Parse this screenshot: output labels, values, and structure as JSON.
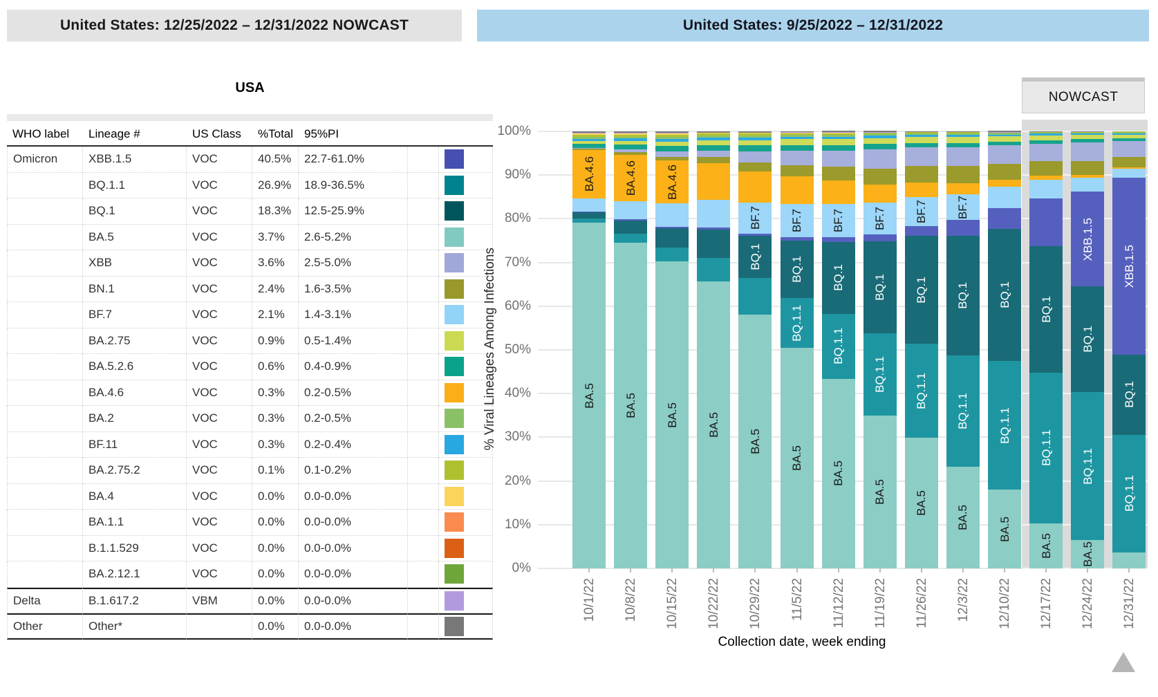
{
  "left_panel": {
    "title": "United States: 12/25/2022 – 12/31/2022 NOWCAST",
    "region_label": "USA",
    "columns": [
      "WHO label",
      "Lineage #",
      "US Class",
      "%Total",
      "95%PI"
    ],
    "rows": [
      {
        "who": "Omicron",
        "lineage": "XBB.1.5",
        "us_class": "VOC",
        "total": "40.5%",
        "pi": "22.7-61.0%",
        "color": "#4650b2"
      },
      {
        "who": "",
        "lineage": "BQ.1.1",
        "us_class": "VOC",
        "total": "26.9%",
        "pi": "18.9-36.5%",
        "color": "#00838d"
      },
      {
        "who": "",
        "lineage": "BQ.1",
        "us_class": "VOC",
        "total": "18.3%",
        "pi": "12.5-25.9%",
        "color": "#01565d"
      },
      {
        "who": "",
        "lineage": "BA.5",
        "us_class": "VOC",
        "total": "3.7%",
        "pi": "2.6-5.2%",
        "color": "#82cac1"
      },
      {
        "who": "",
        "lineage": "XBB",
        "us_class": "VOC",
        "total": "3.6%",
        "pi": "2.5-5.0%",
        "color": "#9fa8d9"
      },
      {
        "who": "",
        "lineage": "BN.1",
        "us_class": "VOC",
        "total": "2.4%",
        "pi": "1.6-3.5%",
        "color": "#99982b"
      },
      {
        "who": "",
        "lineage": "BF.7",
        "us_class": "VOC",
        "total": "2.1%",
        "pi": "1.4-3.1%",
        "color": "#93d3f7"
      },
      {
        "who": "",
        "lineage": "BA.2.75",
        "us_class": "VOC",
        "total": "0.9%",
        "pi": "0.5-1.4%",
        "color": "#cbda52"
      },
      {
        "who": "",
        "lineage": "BA.5.2.6",
        "us_class": "VOC",
        "total": "0.6%",
        "pi": "0.4-0.9%",
        "color": "#0aa28a"
      },
      {
        "who": "",
        "lineage": "BA.4.6",
        "us_class": "VOC",
        "total": "0.3%",
        "pi": "0.2-0.5%",
        "color": "#fbae17"
      },
      {
        "who": "",
        "lineage": "BA.2",
        "us_class": "VOC",
        "total": "0.3%",
        "pi": "0.2-0.5%",
        "color": "#8bc166"
      },
      {
        "who": "",
        "lineage": "BF.11",
        "us_class": "VOC",
        "total": "0.3%",
        "pi": "0.2-0.4%",
        "color": "#29a7e0"
      },
      {
        "who": "",
        "lineage": "BA.2.75.2",
        "us_class": "VOC",
        "total": "0.1%",
        "pi": "0.1-0.2%",
        "color": "#afc02f"
      },
      {
        "who": "",
        "lineage": "BA.4",
        "us_class": "VOC",
        "total": "0.0%",
        "pi": "0.0-0.0%",
        "color": "#fbd45c"
      },
      {
        "who": "",
        "lineage": "BA.1.1",
        "us_class": "VOC",
        "total": "0.0%",
        "pi": "0.0-0.0%",
        "color": "#f98b4e"
      },
      {
        "who": "",
        "lineage": "B.1.1.529",
        "us_class": "VOC",
        "total": "0.0%",
        "pi": "0.0-0.0%",
        "color": "#db6015"
      },
      {
        "who": "",
        "lineage": "BA.2.12.1",
        "us_class": "VOC",
        "total": "0.0%",
        "pi": "0.0-0.0%",
        "color": "#6fa63a",
        "section": "omicron-end"
      },
      {
        "who": "Delta",
        "lineage": "B.1.617.2",
        "us_class": "VBM",
        "total": "0.0%",
        "pi": "0.0-0.0%",
        "color": "#b29adf",
        "section": "start"
      },
      {
        "who": "Other",
        "lineage": "Other*",
        "us_class": "",
        "total": "0.0%",
        "pi": "0.0-0.0%",
        "color": "#787878",
        "section": "start"
      }
    ]
  },
  "right_panel": {
    "title": "United States: 9/25/2022 – 12/31/2022",
    "nowcast_label": "NOWCAST",
    "xlabel": "Collection date, week ending",
    "ylabel": "% Viral Lineages Among Infections"
  },
  "chart_data": {
    "type": "bar",
    "stacked": true,
    "title": "United States: 9/25/2022 – 12/31/2022",
    "xlabel": "Collection date, week ending",
    "ylabel": "% Viral Lineages Among Infections",
    "ylim": [
      0,
      100
    ],
    "yticks": [
      "0%",
      "10%",
      "20%",
      "30%",
      "40%",
      "50%",
      "60%",
      "70%",
      "80%",
      "90%",
      "100%"
    ],
    "grid": true,
    "legend": "none",
    "x": [
      "10/1/22",
      "10/8/22",
      "10/15/22",
      "10/22/22",
      "10/29/22",
      "11/5/22",
      "11/12/22",
      "11/19/22",
      "11/26/22",
      "12/3/22",
      "12/10/22",
      "12/17/22",
      "12/24/22",
      "12/31/22"
    ],
    "nowcast_weeks": [
      "12/17/22",
      "12/24/22",
      "12/31/22"
    ],
    "series": [
      {
        "name": "BA.5",
        "color": "#8ccdc5",
        "label_color": "#1a1a1a",
        "label_weeks": [
          0,
          1,
          2,
          3,
          4,
          5,
          6,
          7,
          8,
          9,
          10,
          11,
          12
        ],
        "values": [
          79.1,
          74.6,
          70.2,
          65.6,
          58.0,
          50.4,
          43.4,
          35.0,
          29.9,
          23.2,
          18.0,
          10.3,
          6.5,
          3.7
        ]
      },
      {
        "name": "BQ.1.1",
        "color": "#1e96a1",
        "label_color": "#ffffff",
        "label_weeks": [
          5,
          6,
          7,
          8,
          9,
          10,
          11,
          12,
          13
        ],
        "values": [
          1.0,
          2.0,
          3.3,
          5.4,
          8.5,
          11.5,
          14.9,
          18.8,
          21.5,
          25.5,
          29.5,
          34.5,
          33.8,
          26.9
        ]
      },
      {
        "name": "BQ.1",
        "color": "#196b77",
        "label_color": "#ffffff",
        "label_weeks": [
          4,
          5,
          6,
          7,
          8,
          9,
          10,
          11,
          12,
          13
        ],
        "values": [
          1.4,
          3.0,
          4.4,
          6.6,
          9.6,
          13.1,
          16.4,
          21.1,
          24.7,
          27.4,
          30.2,
          28.9,
          24.2,
          18.3
        ]
      },
      {
        "name": "XBB.1.5",
        "color": "#5560be",
        "label_color": "#ffffff",
        "label_weeks": [
          12,
          13
        ],
        "values": [
          0.2,
          0.3,
          0.3,
          0.4,
          0.5,
          0.8,
          1.1,
          1.6,
          2.3,
          3.6,
          4.7,
          11.0,
          21.7,
          40.5
        ]
      },
      {
        "name": "BF.7",
        "color": "#9cd6f8",
        "label_color": "#1a1a1a",
        "label_weeks": [
          4,
          5,
          6,
          7,
          8,
          9
        ],
        "values": [
          2.9,
          4.2,
          5.3,
          6.4,
          7.1,
          7.6,
          7.6,
          7.2,
          6.6,
          5.9,
          4.9,
          4.2,
          3.2,
          2.1
        ]
      },
      {
        "name": "BA.4.6",
        "color": "#fbb117",
        "label_color": "#1a1a1a",
        "label_weeks": [
          0,
          1,
          2
        ],
        "values": [
          11.2,
          10.6,
          9.8,
          8.4,
          7.2,
          6.3,
          5.4,
          4.2,
          3.3,
          2.5,
          1.7,
          1.0,
          0.7,
          0.3
        ]
      },
      {
        "name": "BN.1",
        "color": "#9b9a2c",
        "label_color": "#ffffff",
        "label_weeks": [],
        "values": [
          0.2,
          0.6,
          0.9,
          1.3,
          2.0,
          2.6,
          3.2,
          3.6,
          3.8,
          4.0,
          3.6,
          3.3,
          3.1,
          2.4
        ]
      },
      {
        "name": "XBB",
        "color": "#a7afdc",
        "label_color": "#1a1a1a",
        "label_weeks": [],
        "values": [
          0.2,
          0.6,
          1.3,
          1.5,
          2.6,
          3.3,
          3.6,
          4.4,
          4.2,
          4.3,
          4.2,
          4.0,
          4.3,
          3.6
        ]
      },
      {
        "name": "BA.5.2.6",
        "color": "#16a38c",
        "label_color": "#ffffff",
        "label_weeks": [],
        "values": [
          1.0,
          1.1,
          1.2,
          1.3,
          1.3,
          1.3,
          1.2,
          1.2,
          1.1,
          1.0,
          0.9,
          0.8,
          0.7,
          0.6
        ]
      },
      {
        "name": "BA.2.75",
        "color": "#cedc5a",
        "label_color": "#1a1a1a",
        "label_weeks": [],
        "values": [
          0.6,
          0.8,
          1.0,
          1.1,
          1.2,
          1.3,
          1.4,
          1.4,
          1.3,
          1.3,
          1.2,
          1.1,
          1.0,
          0.9
        ]
      },
      {
        "name": "BF.11",
        "color": "#2ea9e1",
        "label_color": "#ffffff",
        "label_weeks": [],
        "values": [
          0.5,
          0.6,
          0.6,
          0.6,
          0.6,
          0.6,
          0.6,
          0.5,
          0.5,
          0.5,
          0.4,
          0.4,
          0.3,
          0.3
        ]
      },
      {
        "name": "BA.2",
        "color": "#8dc267",
        "label_color": "#1a1a1a",
        "label_weeks": [],
        "values": [
          0.4,
          0.4,
          0.5,
          0.5,
          0.5,
          0.5,
          0.5,
          0.5,
          0.4,
          0.4,
          0.4,
          0.3,
          0.3,
          0.3
        ]
      },
      {
        "name": "BA.2.75.2",
        "color": "#b2c233",
        "label_color": "#1a1a1a",
        "label_weeks": [],
        "values": [
          0.5,
          0.5,
          0.5,
          0.4,
          0.4,
          0.3,
          0.3,
          0.2,
          0.2,
          0.2,
          0.1,
          0.1,
          0.1,
          0.1
        ]
      },
      {
        "name": "BA.4",
        "color": "#fcd65e",
        "label_color": "#1a1a1a",
        "label_weeks": [],
        "values": [
          0.4,
          0.3,
          0.3,
          0.2,
          0.2,
          0.1,
          0.1,
          0.1,
          0.0,
          0.0,
          0.0,
          0.0,
          0.0,
          0.0
        ]
      },
      {
        "name": "BA.1.1",
        "color": "#f98e52",
        "label_color": "#1a1a1a",
        "label_weeks": [],
        "values": [
          0.0,
          0.0,
          0.0,
          0.0,
          0.0,
          0.0,
          0.0,
          0.0,
          0.0,
          0.0,
          0.0,
          0.0,
          0.0,
          0.0
        ]
      },
      {
        "name": "B.1.1.529",
        "color": "#dd631e",
        "label_color": "#ffffff",
        "label_weeks": [],
        "values": [
          0.0,
          0.0,
          0.0,
          0.0,
          0.0,
          0.0,
          0.0,
          0.0,
          0.0,
          0.0,
          0.0,
          0.0,
          0.0,
          0.0
        ]
      },
      {
        "name": "BA.2.12.1",
        "color": "#71a73c",
        "label_color": "#ffffff",
        "label_weeks": [],
        "values": [
          0.0,
          0.0,
          0.0,
          0.0,
          0.0,
          0.0,
          0.0,
          0.0,
          0.0,
          0.0,
          0.0,
          0.0,
          0.0,
          0.0
        ]
      },
      {
        "name": "B.1.617.2",
        "color": "#b49be0",
        "label_color": "#1a1a1a",
        "label_weeks": [],
        "values": [
          0.1,
          0.1,
          0.1,
          0.0,
          0.0,
          0.1,
          0.1,
          0.1,
          0.0,
          0.0,
          0.1,
          0.0,
          0.0,
          0.0
        ]
      },
      {
        "name": "Other",
        "color": "#7d7d7d",
        "label_color": "#ffffff",
        "label_weeks": [],
        "values": [
          0.3,
          0.3,
          0.3,
          0.3,
          0.3,
          0.3,
          0.3,
          0.2,
          0.2,
          0.2,
          0.2,
          0.1,
          0.1,
          0.0
        ]
      }
    ]
  }
}
